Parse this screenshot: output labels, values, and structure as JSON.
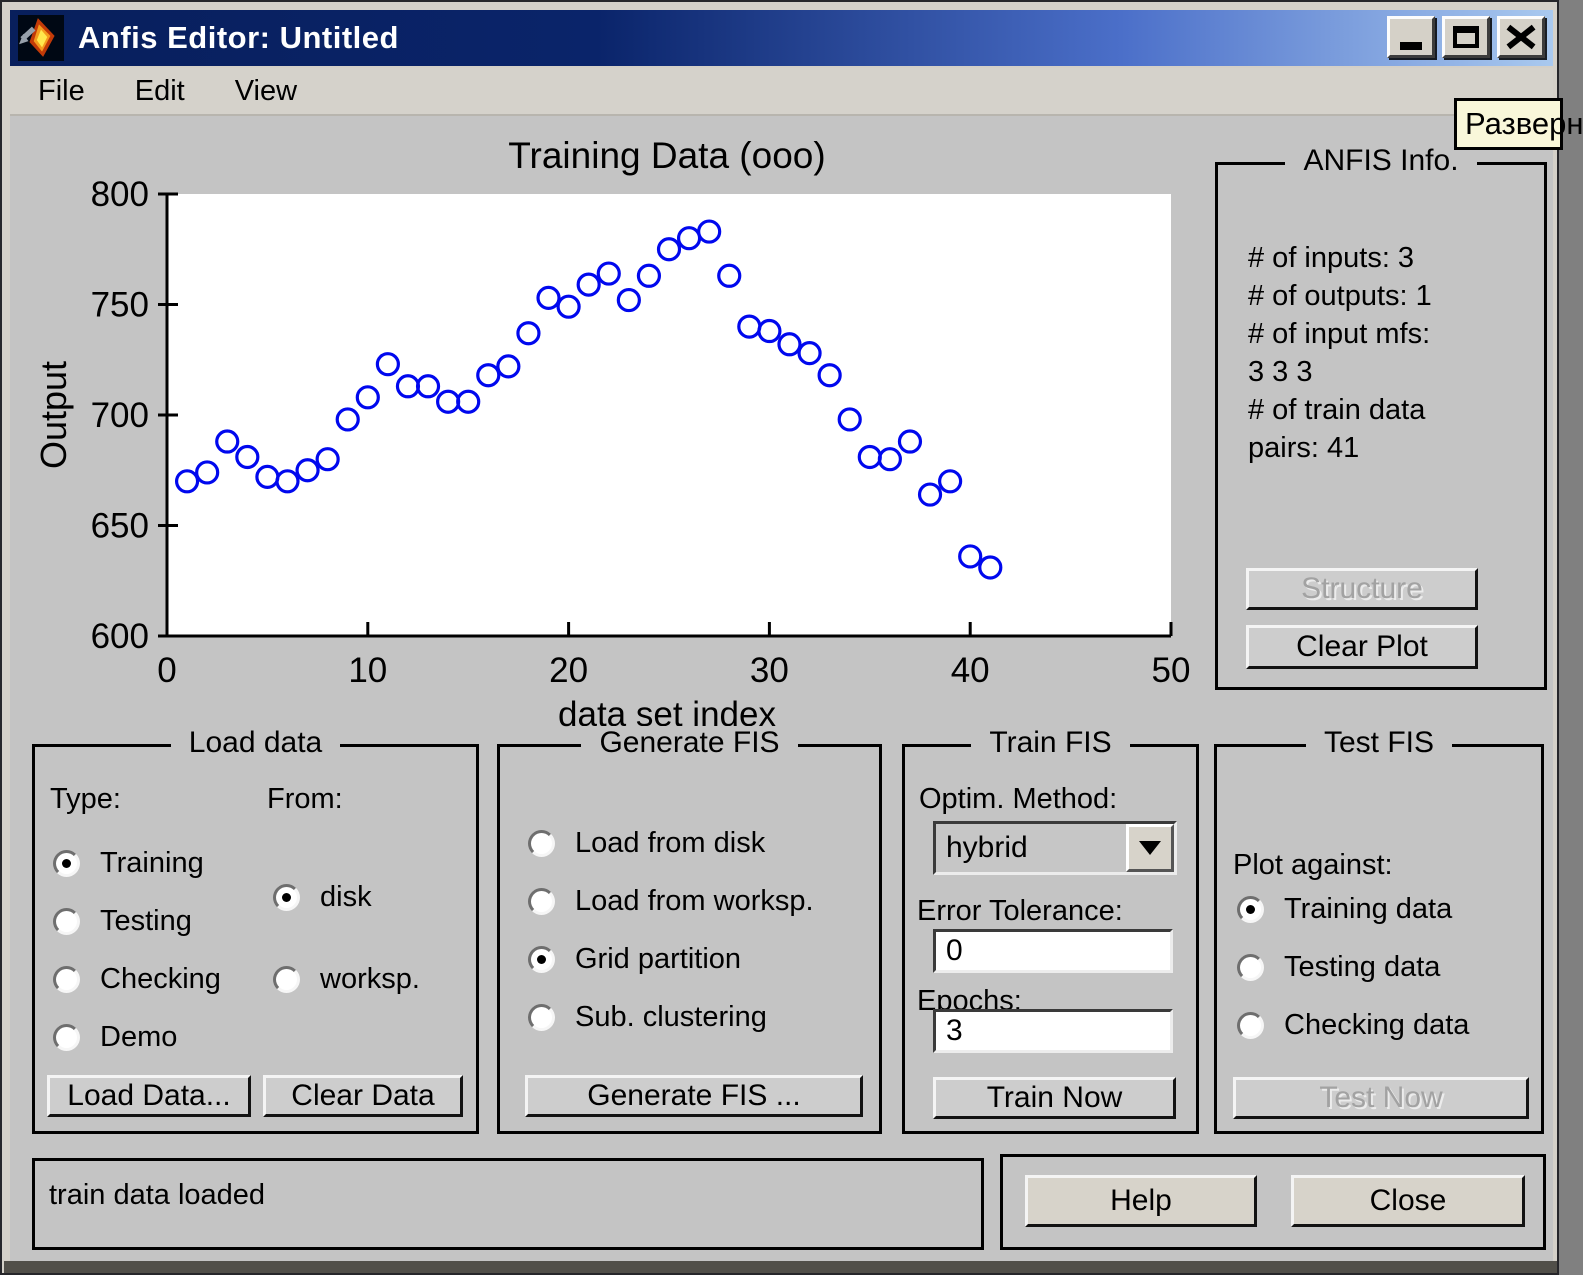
{
  "window": {
    "title": "Anfis Editor: Untitled"
  },
  "menu": {
    "items": [
      "File",
      "Edit",
      "View"
    ]
  },
  "tooltip": {
    "text": "Разверн"
  },
  "chart_data": {
    "type": "scatter",
    "title": "Training Data (ooo)",
    "xlabel": "data set index",
    "ylabel": "Output",
    "xlim": [
      0,
      50
    ],
    "ylim": [
      600,
      800
    ],
    "xticks": [
      0,
      10,
      20,
      30,
      40,
      50
    ],
    "yticks": [
      600,
      650,
      700,
      750,
      800
    ],
    "marker": "open-circle",
    "color": "#0008ee",
    "grid": false,
    "x": [
      1,
      2,
      3,
      4,
      5,
      6,
      7,
      8,
      9,
      10,
      11,
      12,
      13,
      14,
      15,
      16,
      17,
      18,
      19,
      20,
      21,
      22,
      23,
      24,
      25,
      26,
      27,
      28,
      29,
      30,
      31,
      32,
      33,
      34,
      35,
      36,
      37,
      38,
      39,
      40,
      41
    ],
    "y": [
      670,
      674,
      688,
      681,
      672,
      670,
      675,
      680,
      698,
      708,
      723,
      713,
      713,
      706,
      706,
      718,
      722,
      737,
      753,
      749,
      759,
      764,
      752,
      763,
      775,
      780,
      783,
      763,
      740,
      738,
      732,
      728,
      718,
      698,
      681,
      680,
      688,
      664,
      670,
      636,
      631
    ]
  },
  "anfis_info": {
    "title": "ANFIS Info.",
    "lines": [
      "# of inputs: 3",
      "# of outputs: 1",
      "# of input mfs:",
      "3  3  3",
      "# of train data",
      "pairs: 41"
    ],
    "structure_button": "Structure",
    "structure_button_enabled": false,
    "clear_plot_button": "Clear Plot"
  },
  "load_data": {
    "title": "Load data",
    "type_label": "Type:",
    "from_label": "From:",
    "type_options": [
      {
        "label": "Training",
        "selected": true
      },
      {
        "label": "Testing",
        "selected": false
      },
      {
        "label": "Checking",
        "selected": false
      },
      {
        "label": "Demo",
        "selected": false
      }
    ],
    "from_options": [
      {
        "label": "disk",
        "selected": true
      },
      {
        "label": "worksp.",
        "selected": false
      }
    ],
    "load_button": "Load Data...",
    "clear_button": "Clear Data"
  },
  "generate_fis": {
    "title": "Generate FIS",
    "options": [
      {
        "label": "Load from disk",
        "selected": false
      },
      {
        "label": "Load from worksp.",
        "selected": false
      },
      {
        "label": "Grid partition",
        "selected": true
      },
      {
        "label": "Sub. clustering",
        "selected": false
      }
    ],
    "generate_button": "Generate FIS ..."
  },
  "train_fis": {
    "title": "Train FIS",
    "optim_label": "Optim. Method:",
    "optim_value": "hybrid",
    "error_label": "Error Tolerance:",
    "error_value": "0",
    "epochs_label": "Epochs:",
    "epochs_value": "3",
    "train_button": "Train Now"
  },
  "test_fis": {
    "title": "Test FIS",
    "plot_against_label": "Plot against:",
    "options": [
      {
        "label": "Training data",
        "selected": true
      },
      {
        "label": "Testing data",
        "selected": false
      },
      {
        "label": "Checking data",
        "selected": false
      }
    ],
    "test_button": "Test Now",
    "test_button_enabled": false
  },
  "status_bar": {
    "message": "train data loaded"
  },
  "footer": {
    "help_button": "Help",
    "close_button": "Close"
  }
}
